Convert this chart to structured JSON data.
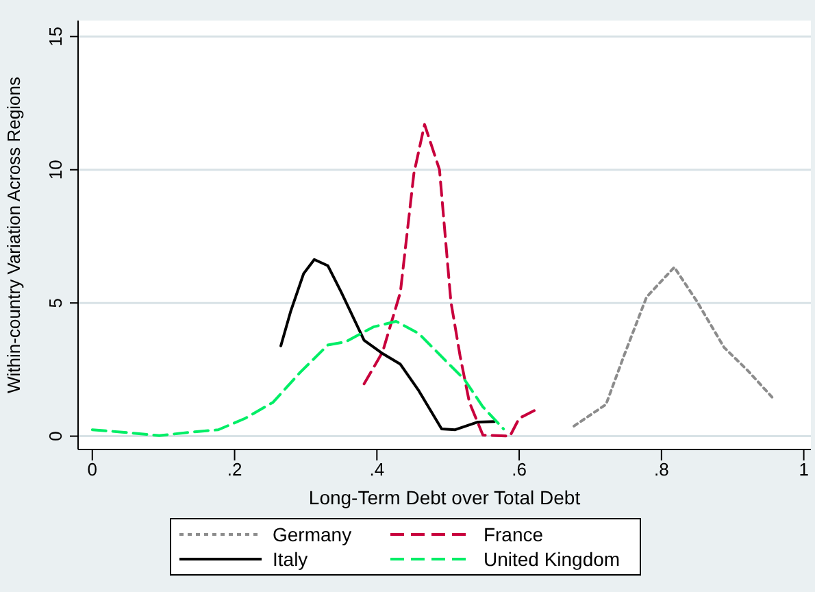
{
  "chart_data": {
    "type": "line",
    "xlabel": "Long-Term Debt over Total Debt",
    "ylabel": "Within-country Variation Across Regions",
    "xlim": [
      -0.02,
      1.01
    ],
    "xticks": [
      {
        "value": 0,
        "label": "0"
      },
      {
        "value": 0.2,
        "label": ".2"
      },
      {
        "value": 0.4,
        "label": ".4"
      },
      {
        "value": 0.6,
        "label": ".6"
      },
      {
        "value": 0.8,
        "label": ".8"
      },
      {
        "value": 1,
        "label": "1"
      }
    ],
    "ylim": [
      -0.5,
      15.6
    ],
    "yticks": [
      0,
      5,
      10,
      15
    ],
    "grid": "y",
    "legend": "bottom",
    "marker": "none",
    "series": [
      {
        "name": "Germany",
        "color": "#8c8c8c",
        "line_style": "dotted",
        "x": [
          0.677,
          0.722,
          0.747,
          0.779,
          0.818,
          0.85,
          0.888,
          0.921,
          0.959
        ],
        "values": [
          0.38,
          1.19,
          3.0,
          5.22,
          6.34,
          5.05,
          3.33,
          2.47,
          1.36
        ]
      },
      {
        "name": "France",
        "color": "#c8003c",
        "line_style": "dashed",
        "x": [
          0.382,
          0.408,
          0.433,
          0.452,
          0.467,
          0.488,
          0.504,
          0.517,
          0.53,
          0.549,
          0.587,
          0.6,
          0.624
        ],
        "values": [
          1.96,
          3.16,
          5.4,
          9.86,
          11.7,
          10.0,
          5.05,
          3.0,
          1.27,
          0.04,
          0,
          0.67,
          1.0
        ]
      },
      {
        "name": "Italy",
        "color": "#000000",
        "line_style": "solid",
        "x": [
          0.265,
          0.279,
          0.297,
          0.312,
          0.331,
          0.35,
          0.366,
          0.382,
          0.408,
          0.433,
          0.459,
          0.491,
          0.51,
          0.542,
          0.565
        ],
        "values": [
          3.39,
          4.7,
          6.1,
          6.63,
          6.4,
          5.4,
          4.5,
          3.6,
          3.1,
          2.7,
          1.7,
          0.27,
          0.24,
          0.53,
          0.55
        ]
      },
      {
        "name": "United Kingdom",
        "color": "#00ee66",
        "line_style": "dashed",
        "x": [
          0,
          0.042,
          0.094,
          0.138,
          0.177,
          0.215,
          0.254,
          0.292,
          0.331,
          0.356,
          0.395,
          0.427,
          0.459,
          0.497,
          0.523,
          0.549,
          0.578
        ],
        "values": [
          0.24,
          0.15,
          0.02,
          0.15,
          0.24,
          0.67,
          1.27,
          2.39,
          3.42,
          3.54,
          4.1,
          4.31,
          3.85,
          2.82,
          2.13,
          1.1,
          0.27
        ]
      }
    ]
  }
}
